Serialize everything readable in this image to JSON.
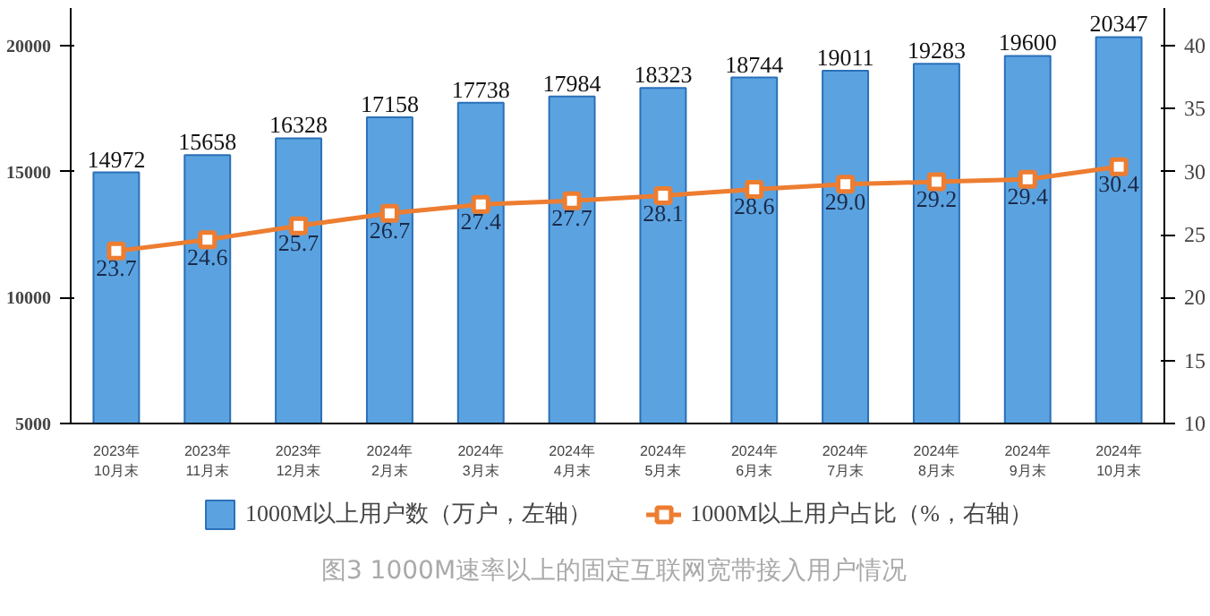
{
  "chart_data": {
    "type": "bar",
    "title": "图3 1000M速率以上的固定互联网宽带接入用户情况",
    "categories": [
      "2023年\n10月末",
      "2023年\n11月末",
      "2023年\n12月末",
      "2024年\n2月末",
      "2024年\n3月末",
      "2024年\n4月末",
      "2024年\n5月末",
      "2024年\n6月末",
      "2024年\n7月末",
      "2024年\n8月末",
      "2024年\n9月末",
      "2024年\n10月末"
    ],
    "series": [
      {
        "name": "1000M以上用户数（万户，左轴）",
        "color": "#5ba3e0",
        "values": [
          14972,
          15658,
          16328,
          17158,
          17738,
          17984,
          18323,
          18744,
          19011,
          19283,
          19600,
          20347
        ]
      },
      {
        "name": "1000M以上用户占比（%，右轴）",
        "type": "line",
        "axis": "y2",
        "color": "#ed7d31",
        "marker": "square",
        "values": [
          23.7,
          24.6,
          25.7,
          26.7,
          27.4,
          27.7,
          28.1,
          28.6,
          29.0,
          29.2,
          29.4,
          30.4
        ],
        "value_labels": [
          "23.7",
          "24.6",
          "25.7",
          "26.7",
          "27.4",
          "27.7",
          "28.1",
          "28.6",
          "29.0",
          "29.2",
          "29.4",
          "30.4"
        ]
      }
    ],
    "ylim": [
      5000,
      21500
    ],
    "yticks": [
      5000,
      10000,
      15000,
      20000
    ],
    "y2lim": [
      10,
      43
    ],
    "y2ticks": [
      10,
      15,
      20,
      25,
      30,
      35,
      40
    ],
    "data_labels": true,
    "grid": false,
    "legend": "bottom"
  }
}
